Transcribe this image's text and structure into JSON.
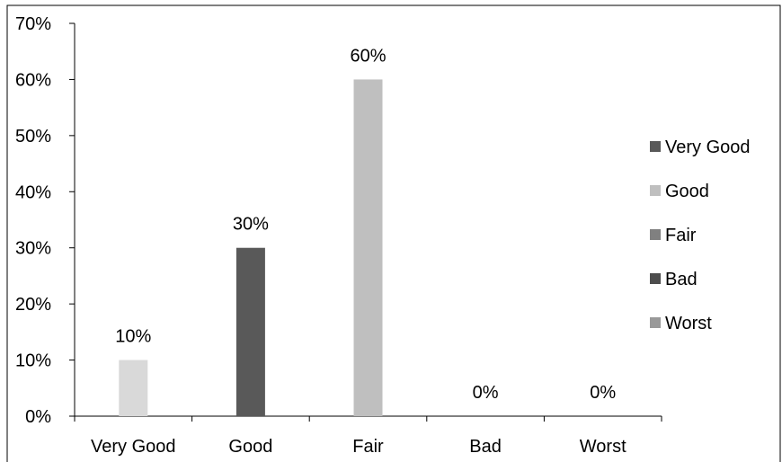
{
  "chart_data": {
    "type": "bar",
    "title": "",
    "xlabel": "",
    "ylabel": "",
    "categories": [
      "Very Good",
      "Good",
      "Fair",
      "Bad",
      "Worst"
    ],
    "values": [
      10,
      30,
      60,
      0,
      0
    ],
    "data_labels": [
      "10%",
      "30%",
      "60%",
      "0%",
      "0%"
    ],
    "bar_colors": [
      "#d9d9d9",
      "#595959",
      "#bfbfbf",
      "#404040",
      "#a6a6a6"
    ],
    "ylim": [
      0,
      70
    ],
    "yticks": [
      0,
      10,
      20,
      30,
      40,
      50,
      60,
      70
    ],
    "ytick_labels": [
      "0%",
      "10%",
      "20%",
      "30%",
      "40%",
      "50%",
      "60%",
      "70%"
    ],
    "grid": false,
    "legend": {
      "placement": "right",
      "entries": [
        {
          "label": "Very Good",
          "color": "#595959"
        },
        {
          "label": "Good",
          "color": "#bfbfbf"
        },
        {
          "label": "Fair",
          "color": "#808080"
        },
        {
          "label": "Bad",
          "color": "#4d4d4d"
        },
        {
          "label": "Worst",
          "color": "#999999"
        }
      ]
    }
  }
}
